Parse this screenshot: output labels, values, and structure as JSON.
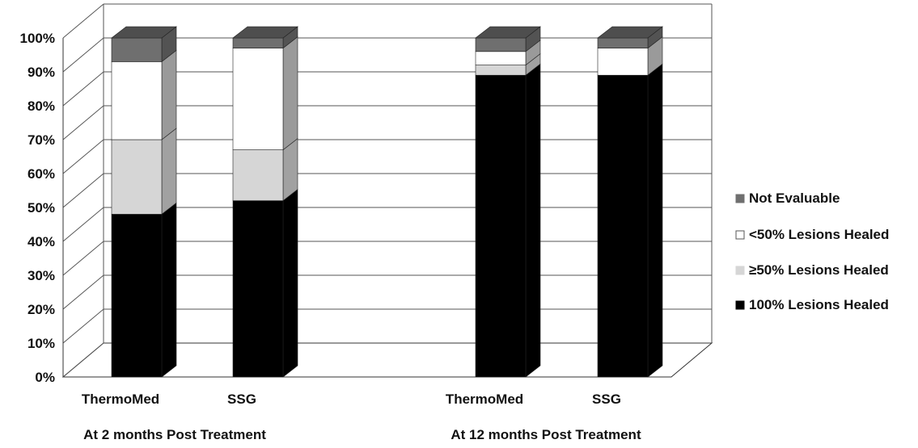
{
  "chart_data": {
    "type": "bar",
    "stacked": true,
    "three_d": true,
    "y_tick_labels": [
      "0%",
      "10%",
      "20%",
      "30%",
      "40%",
      "50%",
      "60%",
      "70%",
      "80%",
      "90%",
      "100%"
    ],
    "ylim": [
      0,
      100
    ],
    "grid": true,
    "legend_position": "right",
    "groups": [
      {
        "label": "At 2 months Post Treatment",
        "categories": [
          "ThermoMed",
          "SSG"
        ]
      },
      {
        "label": "At 12 months Post Treatment",
        "categories": [
          "ThermoMed",
          "SSG"
        ]
      }
    ],
    "categories": [
      "ThermoMed",
      "SSG",
      "ThermoMed",
      "SSG"
    ],
    "series": [
      {
        "name": "100% Lesions Healed",
        "color": "#000000",
        "values": [
          48,
          52,
          89,
          89
        ]
      },
      {
        "name": "≥50% Lesions Healed",
        "color": "#d6d6d6",
        "values": [
          22,
          15,
          3,
          0
        ]
      },
      {
        "name": "<50% Lesions Healed",
        "color": "#ffffff",
        "values": [
          23,
          30,
          4,
          8
        ]
      },
      {
        "name": "Not Evaluable",
        "color": "#6f6f6f",
        "values": [
          7,
          3,
          4,
          3
        ]
      }
    ],
    "legend_order": [
      "Not Evaluable",
      "<50% Lesions Healed",
      "≥50% Lesions Healed",
      "100% Lesions Healed"
    ]
  }
}
